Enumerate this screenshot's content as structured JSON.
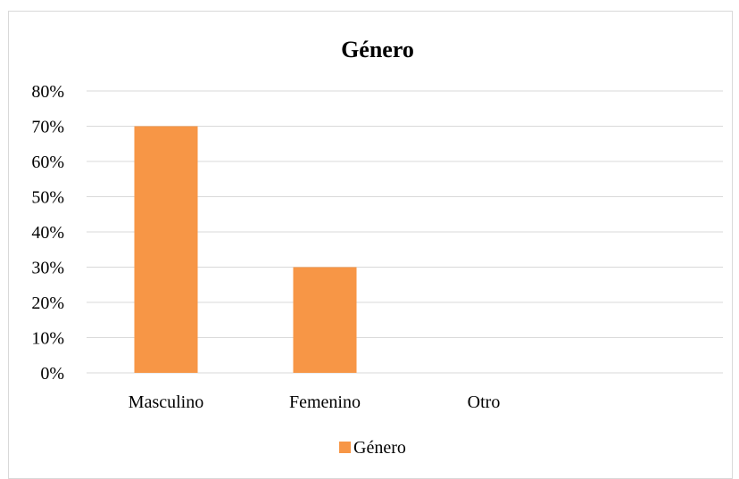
{
  "chart_data": {
    "type": "bar",
    "title": "Género",
    "categories": [
      "Masculino",
      "Femenino",
      "Otro"
    ],
    "series": [
      {
        "name": "Género",
        "values": [
          70,
          30,
          0
        ],
        "color": "#f79646"
      }
    ],
    "yticks": [
      "0%",
      "10%",
      "20%",
      "30%",
      "40%",
      "50%",
      "60%",
      "70%",
      "80%"
    ],
    "ylim": [
      0,
      80
    ],
    "y_unit": "%",
    "grid": true,
    "legend_position": "bottom",
    "colors": {
      "gridline": "#d9d9d9",
      "frame": "#d9d9d9"
    }
  }
}
